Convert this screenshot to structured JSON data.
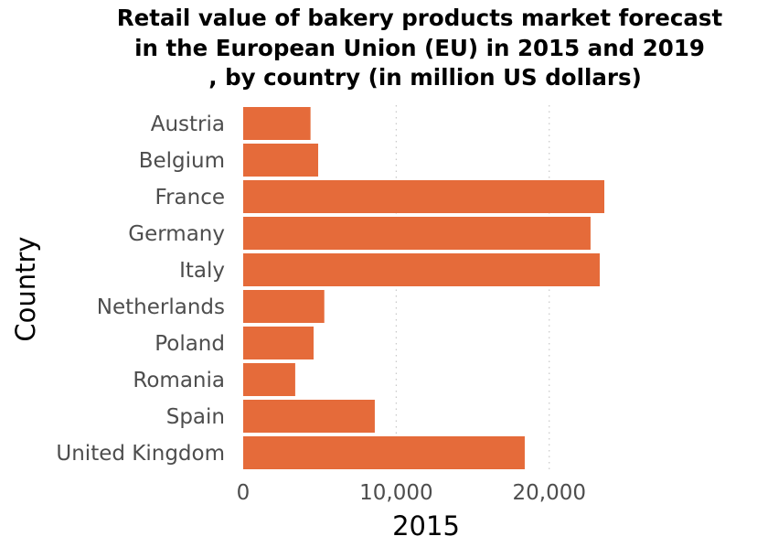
{
  "chart_data": {
    "type": "bar",
    "orientation": "horizontal",
    "title": [
      "Retail value of bakery products market forecast",
      "in the European Union (EU) in 2015 and 2019",
      ", by country (in million US dollars)"
    ],
    "xlabel": "2015",
    "ylabel": "Country",
    "categories": [
      "Austria",
      "Belgium",
      "France",
      "Germany",
      "Italy",
      "Netherlands",
      "Poland",
      "Romania",
      "Spain",
      "United Kingdom"
    ],
    "values": [
      4400,
      4900,
      23600,
      22700,
      23300,
      5300,
      4600,
      3400,
      8600,
      18400
    ],
    "xlim": [
      0,
      23600
    ],
    "xticks": [
      0,
      10000,
      20000
    ],
    "xtick_labels": [
      "0",
      "10,000",
      "20,000"
    ],
    "grid": "vertical dotted",
    "bar_color": "#e56b3a"
  }
}
